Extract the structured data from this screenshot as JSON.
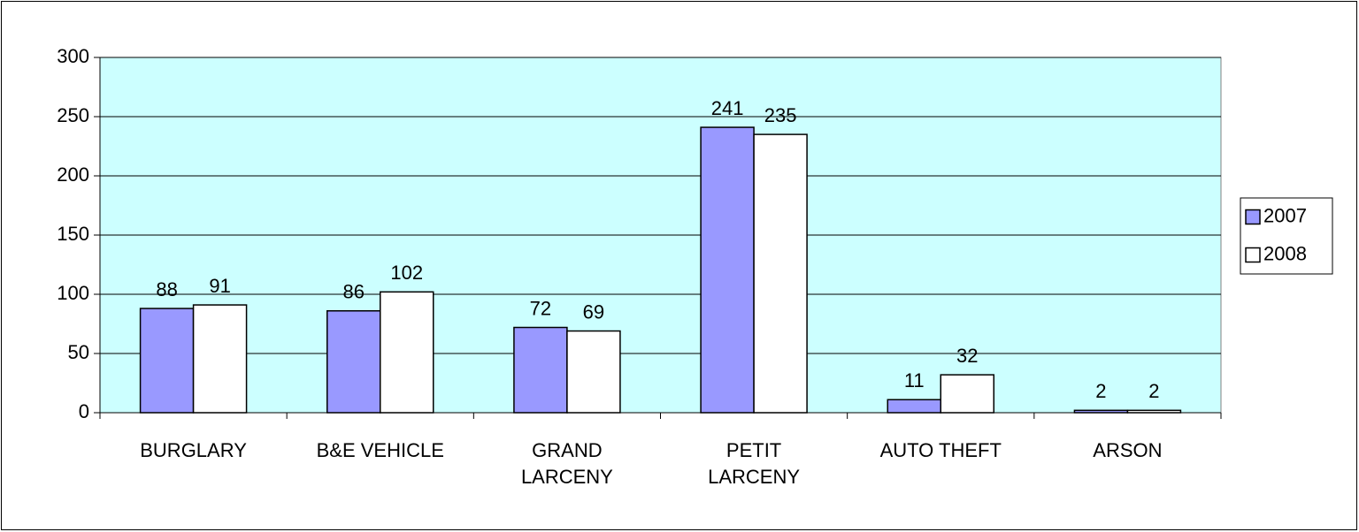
{
  "chart_data": {
    "type": "bar",
    "categories": [
      "BURGLARY",
      "B&E VEHICLE",
      "GRAND LARCENY",
      "PETIT LARCENY",
      "AUTO THEFT",
      "ARSON"
    ],
    "series": [
      {
        "name": "2007",
        "color": "#9999ff",
        "values": [
          88,
          86,
          72,
          241,
          11,
          2
        ]
      },
      {
        "name": "2008",
        "color": "#ffffff",
        "values": [
          91,
          102,
          69,
          235,
          32,
          2
        ]
      }
    ],
    "ylim": [
      0,
      300
    ],
    "yticks": [
      0,
      50,
      100,
      150,
      200,
      250,
      300
    ],
    "grid": true,
    "legend": "right",
    "background": "#ccffff"
  }
}
